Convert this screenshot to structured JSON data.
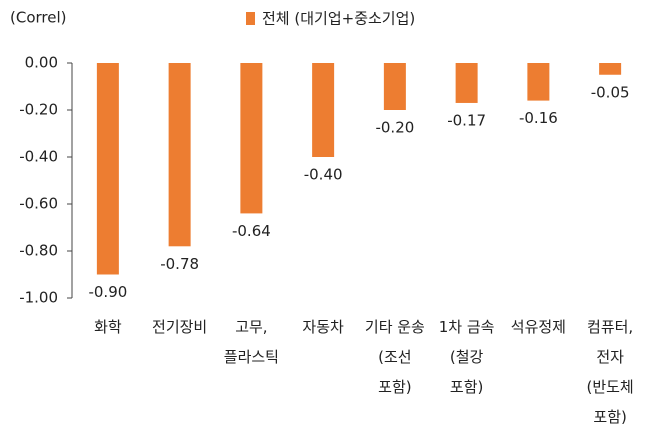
{
  "chart_data": {
    "type": "bar",
    "y_label": "(Correl)",
    "categories": [
      "화학",
      "전기장비",
      "고무,\n플라스틱",
      "자동차",
      "기타 운송\n(조선\n포함)",
      "1차 금속\n(철강\n포함)",
      "석유정제",
      "컴퓨터,\n전자\n(반도체\n포함)"
    ],
    "series": [
      {
        "name": "전체 (대기업+중소기업)",
        "color": "#ed7d31",
        "values": [
          -0.9,
          -0.78,
          -0.64,
          -0.4,
          -0.2,
          -0.17,
          -0.16,
          -0.05
        ],
        "value_labels": [
          "-0.90",
          "-0.78",
          "-0.64",
          "-0.40",
          "-0.20",
          "-0.17",
          "-0.16",
          "-0.05"
        ]
      }
    ],
    "ylim": [
      -1,
      0
    ],
    "yticks": [
      {
        "value": 0,
        "label": "0.00"
      },
      {
        "value": -0.2,
        "label": "-0.20"
      },
      {
        "value": -0.4,
        "label": "-0.40"
      },
      {
        "value": -0.6,
        "label": "-0.60"
      },
      {
        "value": -0.8,
        "label": "-0.80"
      },
      {
        "value": -1,
        "label": "-1.00"
      }
    ],
    "grid": false
  }
}
